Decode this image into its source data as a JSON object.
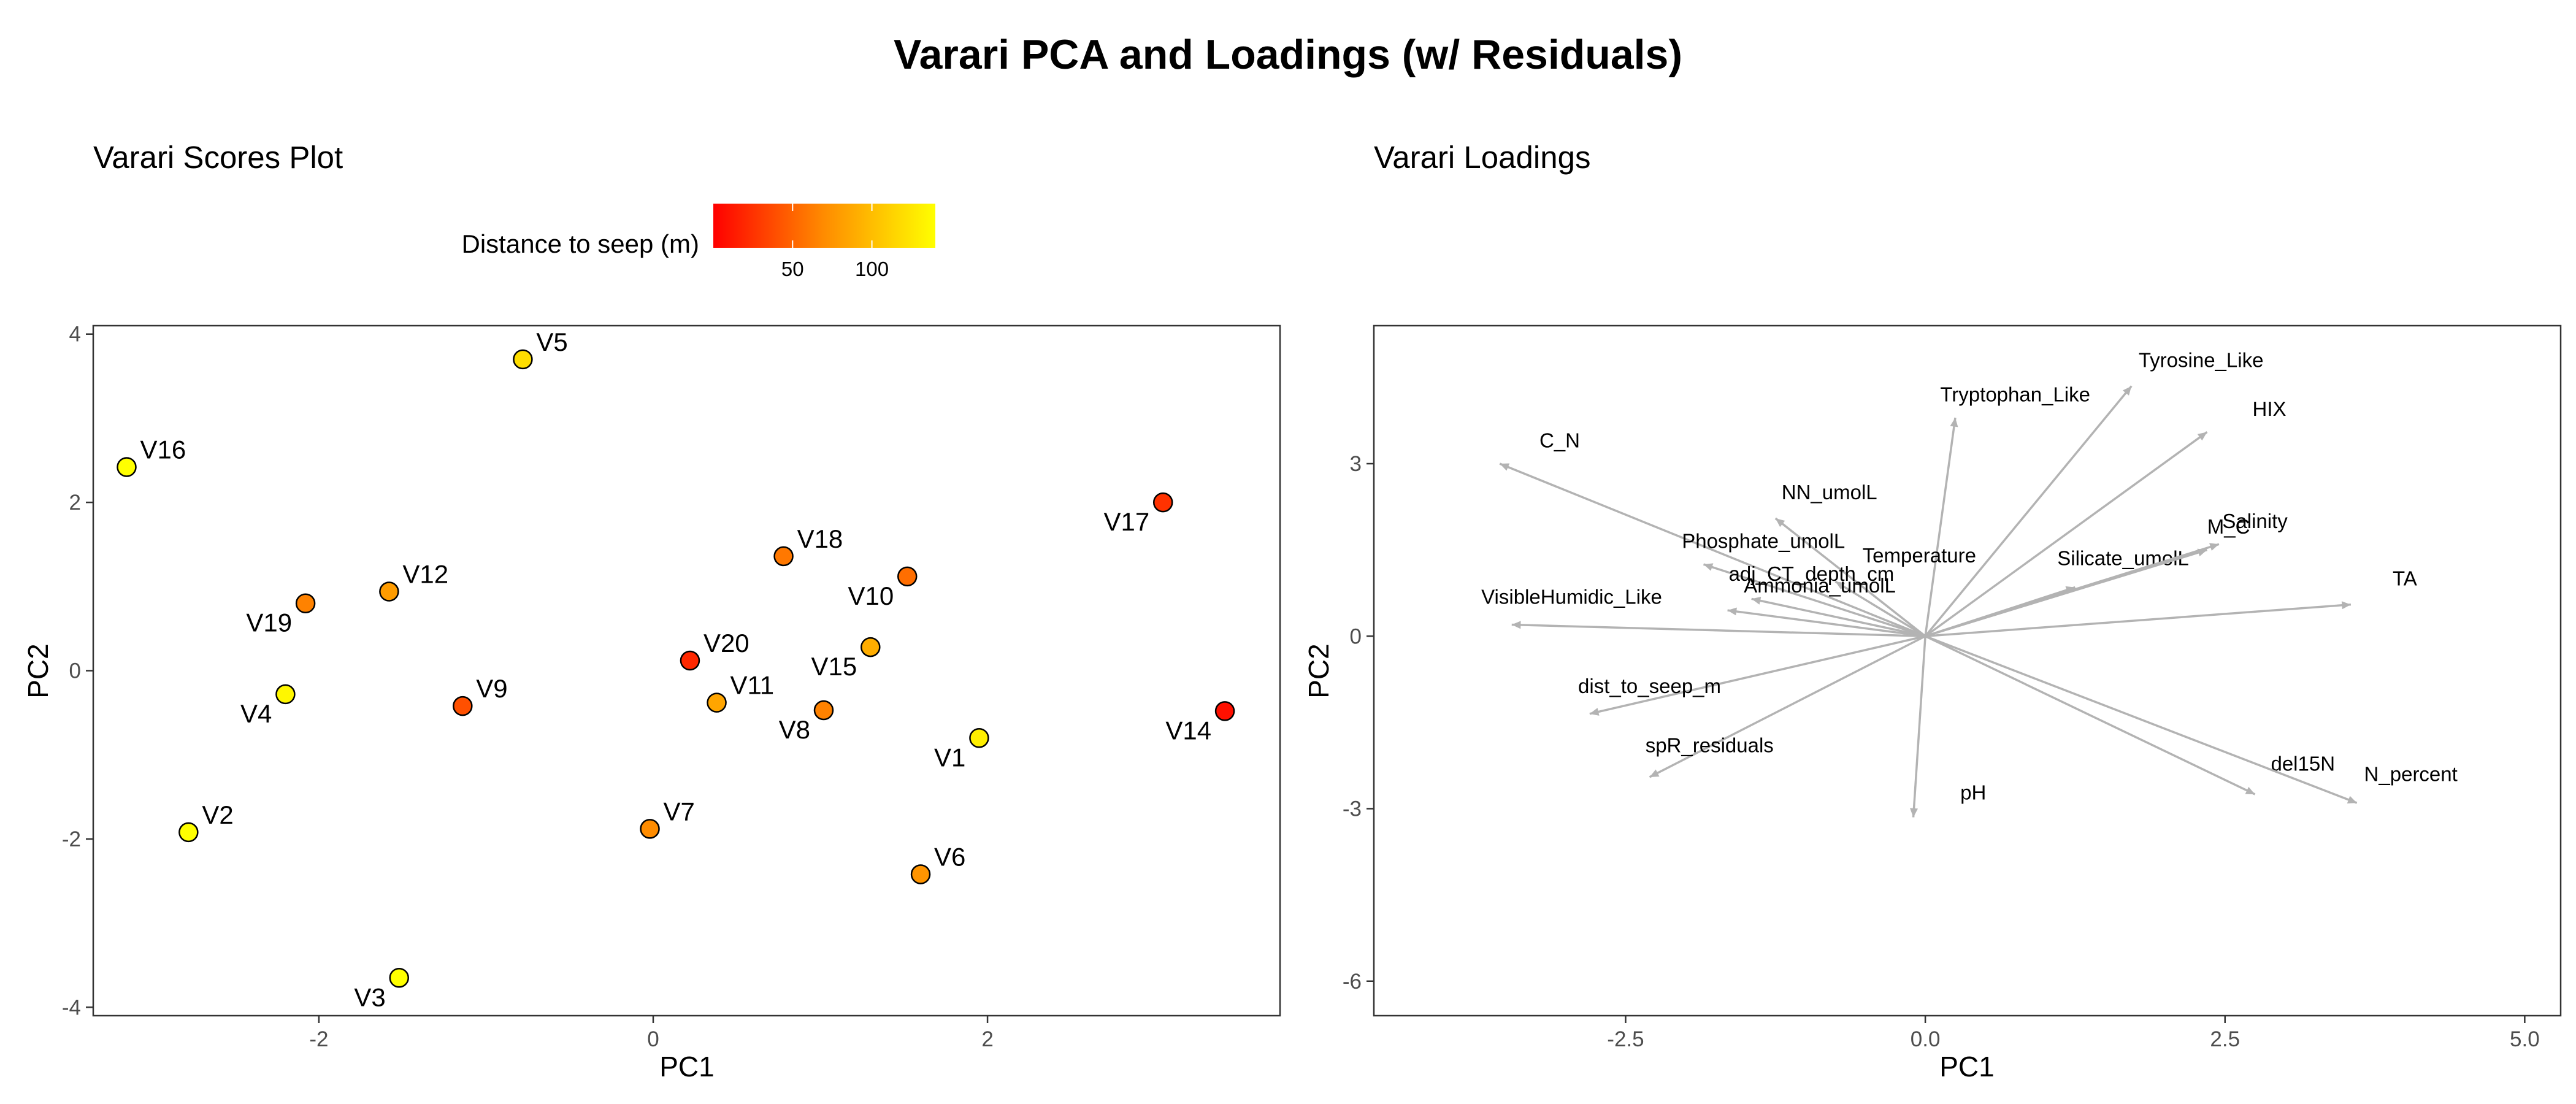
{
  "title": "Varari PCA and Loadings (w/ Residuals)",
  "chart_data": [
    {
      "type": "scatter",
      "title": "Varari Scores Plot",
      "xlabel": "PC1",
      "ylabel": "PC2",
      "xlim": [
        -3.35,
        3.75
      ],
      "ylim": [
        -4.1,
        4.1
      ],
      "xticks": [
        -2,
        0,
        2
      ],
      "yticks": [
        -4,
        -2,
        0,
        2,
        4
      ],
      "grid": false,
      "legend": {
        "title": "Distance to seep (m)",
        "placement": "top-left",
        "min": 0,
        "max": 140,
        "ticks": [
          50,
          100
        ],
        "colors": [
          "#ff0000",
          "#ff8c00",
          "#ffff00"
        ]
      },
      "points": [
        {
          "label": "V1",
          "x": 1.95,
          "y": -0.8,
          "dist": 130,
          "anchor": "bl"
        },
        {
          "label": "V2",
          "x": -2.78,
          "y": -1.92,
          "dist": 140,
          "anchor": "tr"
        },
        {
          "label": "V3",
          "x": -1.52,
          "y": -3.65,
          "dist": 140,
          "anchor": "bl"
        },
        {
          "label": "V4",
          "x": -2.2,
          "y": -0.28,
          "dist": 135,
          "anchor": "bl"
        },
        {
          "label": "V5",
          "x": -0.78,
          "y": 3.7,
          "dist": 120,
          "anchor": "tr"
        },
        {
          "label": "V6",
          "x": 1.6,
          "y": -2.42,
          "dist": 75,
          "anchor": "tr"
        },
        {
          "label": "V7",
          "x": -0.02,
          "y": -1.88,
          "dist": 70,
          "anchor": "tr"
        },
        {
          "label": "V8",
          "x": 1.02,
          "y": -0.47,
          "dist": 65,
          "anchor": "bl"
        },
        {
          "label": "V9",
          "x": -1.14,
          "y": -0.42,
          "dist": 40,
          "anchor": "tr"
        },
        {
          "label": "V10",
          "x": 1.52,
          "y": 1.12,
          "dist": 55,
          "anchor": "bl"
        },
        {
          "label": "V11",
          "x": 0.38,
          "y": -0.38,
          "dist": 85,
          "anchor": "tr"
        },
        {
          "label": "V12",
          "x": -1.58,
          "y": 0.94,
          "dist": 80,
          "anchor": "tr"
        },
        {
          "label": "V14",
          "x": 3.42,
          "y": -0.48,
          "dist": 8,
          "anchor": "bl"
        },
        {
          "label": "V15",
          "x": 1.3,
          "y": 0.28,
          "dist": 90,
          "anchor": "bl"
        },
        {
          "label": "V16",
          "x": -3.15,
          "y": 2.42,
          "dist": 140,
          "anchor": "tr"
        },
        {
          "label": "V17",
          "x": 3.05,
          "y": 2.0,
          "dist": 25,
          "anchor": "bl"
        },
        {
          "label": "V18",
          "x": 0.78,
          "y": 1.36,
          "dist": 60,
          "anchor": "tr"
        },
        {
          "label": "V19",
          "x": -2.08,
          "y": 0.8,
          "dist": 65,
          "anchor": "bl"
        },
        {
          "label": "V20",
          "x": 0.22,
          "y": 0.12,
          "dist": 20,
          "anchor": "tr"
        }
      ]
    },
    {
      "type": "scatter",
      "title": "Varari Loadings",
      "xlabel": "PC1",
      "ylabel": "PC2",
      "xlim": [
        -4.6,
        5.3
      ],
      "ylim": [
        -6.6,
        5.4
      ],
      "xticks": [
        -2.5,
        0.0,
        2.5,
        5.0
      ],
      "yticks": [
        -6,
        -3,
        0,
        3
      ],
      "grid": false,
      "arrow_color": "#b3b3b3",
      "loadings": [
        {
          "label": "C_N",
          "x": -3.55,
          "y": 3.0,
          "lx": -3.05,
          "ly": 3.4
        },
        {
          "label": "NN_umolL",
          "x": -1.25,
          "y": 2.05,
          "lx": -0.8,
          "ly": 2.5
        },
        {
          "label": "Tryptophan_Like",
          "x": 0.25,
          "y": 3.8,
          "lx": 0.75,
          "ly": 4.2
        },
        {
          "label": "Tyrosine_Like",
          "x": 1.72,
          "y": 4.35,
          "lx": 2.3,
          "ly": 4.8
        },
        {
          "label": "HIX",
          "x": 2.35,
          "y": 3.55,
          "lx": 2.87,
          "ly": 3.95
        },
        {
          "label": "Phosphate_umolL",
          "x": -1.85,
          "y": 1.25,
          "lx": -1.35,
          "ly": 1.65
        },
        {
          "label": "Temperature",
          "x": -0.75,
          "y": 0.95,
          "lx": -0.05,
          "ly": 1.4
        },
        {
          "label": "adj_CT_depth_cm",
          "x": -1.45,
          "y": 0.65,
          "lx": -0.95,
          "ly": 1.08
        },
        {
          "label": "Ammonia_umolL",
          "x": -1.65,
          "y": 0.45,
          "lx": -0.88,
          "ly": 0.88
        },
        {
          "label": "Silicate_umolL",
          "x": 1.25,
          "y": 0.85,
          "lx": 1.65,
          "ly": 1.35
        },
        {
          "label": "M_C",
          "x": 2.35,
          "y": 1.5,
          "lx": 2.53,
          "ly": 1.9
        },
        {
          "label": "Salinity",
          "x": 2.45,
          "y": 1.6,
          "lx": 2.75,
          "ly": 2.0
        },
        {
          "label": "TA",
          "x": 3.55,
          "y": 0.55,
          "lx": 4.0,
          "ly": 1.0
        },
        {
          "label": "VisibleHumidic_Like",
          "x": -3.45,
          "y": 0.2,
          "lx": -2.95,
          "ly": 0.68
        },
        {
          "label": "dist_to_seep_m",
          "x": -2.8,
          "y": -1.35,
          "lx": -2.3,
          "ly": -0.87
        },
        {
          "label": "spR_residuals",
          "x": -2.3,
          "y": -2.45,
          "lx": -1.8,
          "ly": -1.9
        },
        {
          "label": "pH",
          "x": -0.1,
          "y": -3.15,
          "lx": 0.4,
          "ly": -2.72
        },
        {
          "label": "del15N",
          "x": 2.75,
          "y": -2.75,
          "lx": 3.15,
          "ly": -2.22
        },
        {
          "label": "N_percent",
          "x": 3.6,
          "y": -2.9,
          "lx": 4.05,
          "ly": -2.4
        }
      ]
    }
  ]
}
